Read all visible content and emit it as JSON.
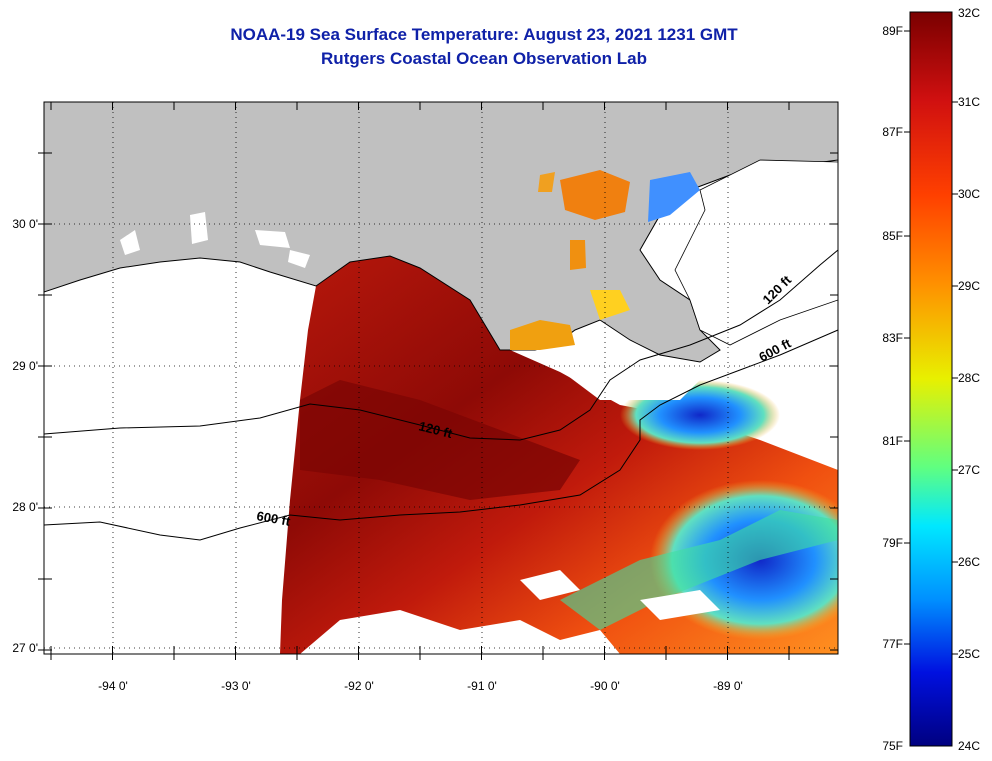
{
  "title": {
    "line1": "NOAA-19 Sea Surface Temperature:  August 23, 2021 1231 GMT",
    "line2": "Rutgers Coastal Ocean Observation Lab"
  },
  "axes": {
    "x_ticks": [
      "-94 0'",
      "-93 0'",
      "-92 0'",
      "-91 0'",
      "-90 0'",
      "-89 0'"
    ],
    "y_ticks": [
      "30 0'",
      "29 0'",
      "28 0'",
      "27 0'"
    ]
  },
  "contours": {
    "shelf_120": "120 ft",
    "shelf_600": "600 ft",
    "east_120": "120 ft",
    "east_600": "600 ft"
  },
  "colorbar": {
    "celsius": [
      "32C",
      "31C",
      "30C",
      "29C",
      "28C",
      "27C",
      "26C",
      "25C",
      "24C"
    ],
    "fahrenheit": [
      "89F",
      "87F",
      "85F",
      "83F",
      "81F",
      "79F",
      "77F",
      "75F"
    ]
  },
  "colors": {
    "land": "#c0c0c0",
    "title": "#0f21a8",
    "sst_warm": "#a01008",
    "sst_cool": "#1020c8"
  }
}
